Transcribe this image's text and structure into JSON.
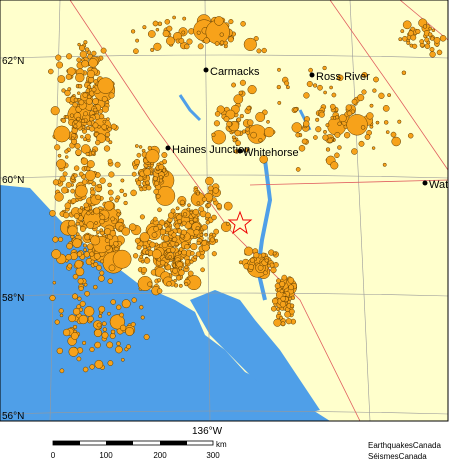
{
  "map": {
    "lat_labels": [
      "62°N",
      "60°N",
      "58°N",
      "56°N"
    ],
    "lon_label": "136°W",
    "places": [
      "Carmacks",
      "Ross River",
      "Haines Junction",
      "Whitehorse",
      "Wats"
    ],
    "scale": {
      "ticks": [
        "0",
        "100",
        "200",
        "300"
      ],
      "unit": "km"
    },
    "credits": [
      "EarthquakesCanada",
      "SéismesCanada"
    ]
  }
}
